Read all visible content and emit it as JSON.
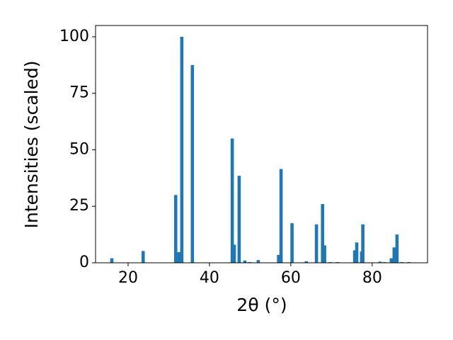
{
  "chart_data": {
    "type": "bar",
    "x_label": "2θ (°)",
    "y_label": "Intensities (scaled)",
    "color": "#1f77b4",
    "x": [
      16.0,
      23.7,
      31.7,
      32.5,
      33.2,
      35.8,
      45.6,
      46.1,
      47.3,
      48.7,
      49.9,
      52.0,
      57.0,
      57.6,
      60.3,
      63.8,
      66.3,
      67.8,
      68.3,
      69.7,
      71.5,
      75.7,
      76.2,
      77.4,
      77.7,
      81.9,
      83.0,
      84.7,
      85.4,
      86.1,
      87.3,
      89.0
    ],
    "values": [
      2,
      5.2,
      30,
      4.7,
      100,
      87.5,
      55,
      8,
      38.5,
      1,
      0.3,
      1.2,
      3.5,
      41.5,
      17.5,
      0.7,
      17,
      26,
      7.7,
      0.3,
      0.3,
      5.5,
      9,
      5,
      17,
      0.5,
      0.3,
      2,
      6.8,
      12.5,
      0.3,
      0.3
    ],
    "xlim": [
      12,
      93.6
    ],
    "ylim": [
      0,
      105
    ],
    "xticks": [
      20,
      40,
      60,
      80
    ],
    "yticks": [
      0,
      25,
      50,
      75,
      100
    ],
    "grid": false
  }
}
